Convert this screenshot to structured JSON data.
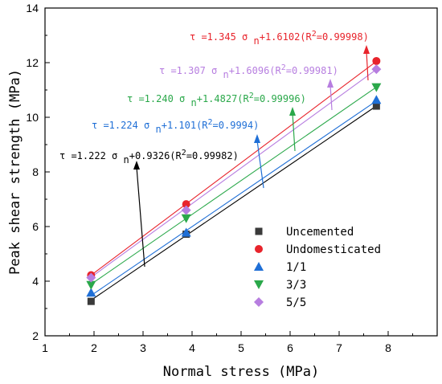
{
  "chart_data": {
    "type": "scatter",
    "xlabel": "Normal stress (MPa)",
    "ylabel": "Peak shear strength (MPa)",
    "xlim": [
      1,
      9
    ],
    "ylim": [
      2,
      14
    ],
    "x_ticks": [
      "1",
      "2",
      "3",
      "4",
      "5",
      "6",
      "7",
      "8"
    ],
    "y_ticks": [
      "2",
      "4",
      "6",
      "8",
      "10",
      "12",
      "14"
    ],
    "legend_position": "bottom-right",
    "series": [
      {
        "name": "Uncemented",
        "color": "#3a3a3a",
        "marker": "square",
        "x": [
          1.94,
          3.88,
          7.76
        ],
        "y": [
          3.26,
          5.72,
          10.41
        ],
        "slope": 1.222,
        "intercept": 0.9326,
        "equation": "τ =1.222 σ n+0.9326(R2=0.99982)"
      },
      {
        "name": "Undomesticated",
        "color": "#e8242c",
        "marker": "circle",
        "x": [
          1.94,
          3.88,
          7.76
        ],
        "y": [
          4.22,
          6.82,
          12.06
        ],
        "slope": 1.345,
        "intercept": 1.6102,
        "equation": "τ =1.345 σ n+1.6102(R2=0.99998)"
      },
      {
        "name": "1/1",
        "color": "#1f6fd6",
        "marker": "triangle-up",
        "x": [
          1.94,
          3.88,
          7.76
        ],
        "y": [
          3.58,
          5.78,
          10.64
        ],
        "slope": 1.224,
        "intercept": 1.101,
        "equation": "τ =1.224 σ n+1.101(R2=0.9994)"
      },
      {
        "name": "3/3",
        "color": "#2aa84a",
        "marker": "triangle-down",
        "x": [
          1.94,
          3.88,
          7.76
        ],
        "y": [
          3.86,
          6.3,
          11.1
        ],
        "slope": 1.24,
        "intercept": 1.4827,
        "equation": "τ =1.240 σ n+1.4827(R2=0.99996)"
      },
      {
        "name": "5/5",
        "color": "#b77ee0",
        "marker": "diamond",
        "x": [
          1.94,
          3.88,
          7.76
        ],
        "y": [
          4.13,
          6.6,
          11.76
        ],
        "slope": 1.307,
        "intercept": 1.6096,
        "equation": "τ =1.307 σ n+1.6096(R2=0.99981)"
      }
    ]
  }
}
